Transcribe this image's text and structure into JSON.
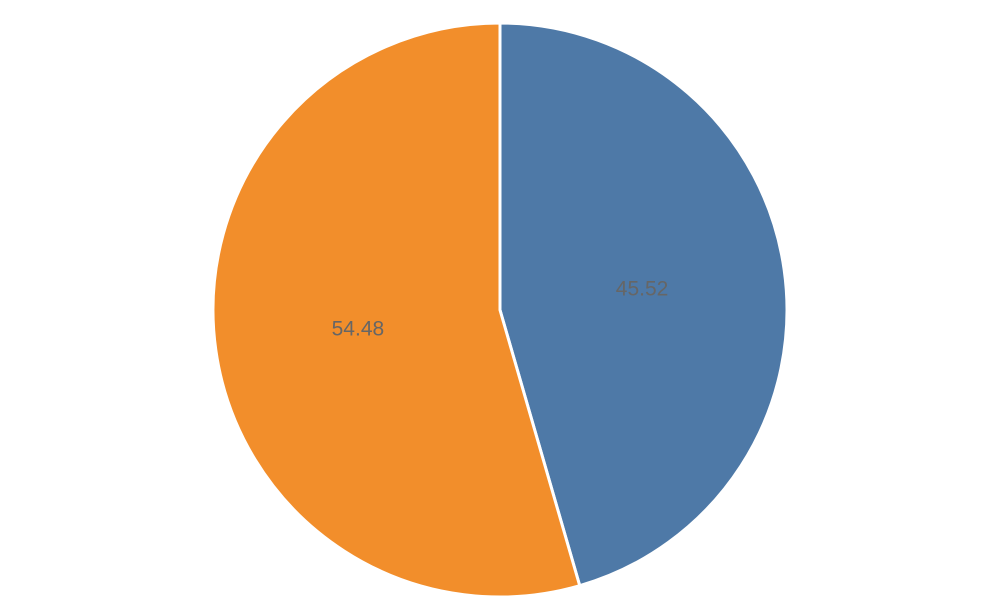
{
  "chart_data": {
    "type": "pie",
    "values": [
      45.52,
      54.48
    ],
    "colors": [
      "#4e79a7",
      "#f28e2b"
    ]
  }
}
